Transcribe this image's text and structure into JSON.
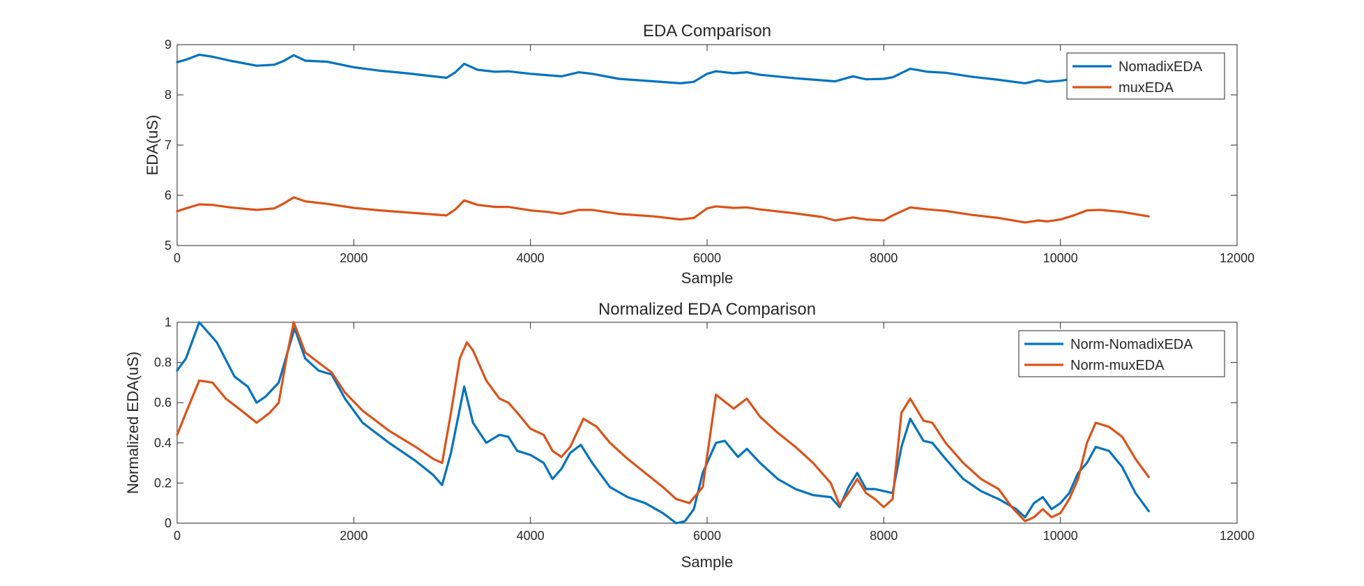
{
  "chart_data": [
    {
      "type": "line",
      "title": "EDA Comparison",
      "xlabel": "Sample",
      "ylabel": "EDA(uS)",
      "xlim": [
        0,
        12000
      ],
      "ylim": [
        5,
        9
      ],
      "xticks": [
        0,
        2000,
        4000,
        6000,
        8000,
        10000,
        12000
      ],
      "xtick_labels": [
        "0",
        "2000",
        "4000",
        "6000",
        "8000",
        "10000",
        "12000"
      ],
      "yticks": [
        5,
        6,
        7,
        8,
        9
      ],
      "ytick_labels": [
        "5",
        "6",
        "7",
        "8",
        "9"
      ],
      "grid": false,
      "legend": "top-right",
      "series": [
        {
          "name": "NomadixEDA",
          "color": "#0072BD",
          "x": [
            0,
            100,
            250,
            400,
            600,
            900,
            1100,
            1200,
            1320,
            1450,
            1700,
            2000,
            2300,
            2600,
            2900,
            3050,
            3150,
            3250,
            3400,
            3600,
            3750,
            4000,
            4200,
            4350,
            4550,
            4700,
            5000,
            5400,
            5700,
            5850,
            6000,
            6100,
            6300,
            6450,
            6600,
            7000,
            7300,
            7450,
            7650,
            7800,
            8000,
            8100,
            8300,
            8500,
            8700,
            9000,
            9300,
            9600,
            9750,
            9850,
            10000,
            10150
          ],
          "y": [
            8.65,
            8.7,
            8.8,
            8.76,
            8.68,
            8.58,
            8.6,
            8.67,
            8.79,
            8.68,
            8.66,
            8.55,
            8.48,
            8.43,
            8.37,
            8.34,
            8.45,
            8.62,
            8.5,
            8.46,
            8.47,
            8.42,
            8.39,
            8.37,
            8.45,
            8.42,
            8.32,
            8.27,
            8.23,
            8.26,
            8.42,
            8.47,
            8.43,
            8.45,
            8.4,
            8.33,
            8.29,
            8.27,
            8.37,
            8.31,
            8.32,
            8.35,
            8.52,
            8.46,
            8.44,
            8.36,
            8.3,
            8.23,
            8.29,
            8.26,
            8.28,
            8.32
          ]
        },
        {
          "name": "muxEDA",
          "color": "#D95319",
          "x": [
            0,
            100,
            250,
            400,
            600,
            900,
            1100,
            1200,
            1320,
            1450,
            1700,
            2000,
            2300,
            2600,
            2900,
            3050,
            3150,
            3250,
            3400,
            3600,
            3750,
            4000,
            4200,
            4350,
            4550,
            4700,
            5000,
            5400,
            5700,
            5850,
            6000,
            6100,
            6300,
            6450,
            6600,
            7000,
            7300,
            7450,
            7650,
            7800,
            8000,
            8100,
            8300,
            8500,
            8700,
            9000,
            9300,
            9600,
            9750,
            9850,
            10000,
            10150,
            10300,
            10450,
            10700,
            11000
          ],
          "y": [
            5.68,
            5.74,
            5.82,
            5.81,
            5.76,
            5.71,
            5.74,
            5.83,
            5.96,
            5.88,
            5.83,
            5.75,
            5.7,
            5.66,
            5.62,
            5.6,
            5.72,
            5.9,
            5.81,
            5.77,
            5.77,
            5.7,
            5.67,
            5.63,
            5.71,
            5.71,
            5.63,
            5.58,
            5.52,
            5.55,
            5.74,
            5.78,
            5.75,
            5.76,
            5.72,
            5.64,
            5.57,
            5.5,
            5.56,
            5.52,
            5.5,
            5.6,
            5.76,
            5.72,
            5.69,
            5.61,
            5.55,
            5.46,
            5.5,
            5.48,
            5.52,
            5.6,
            5.7,
            5.71,
            5.67,
            5.58
          ]
        }
      ]
    },
    {
      "type": "line",
      "title": "Normalized EDA Comparison",
      "xlabel": "Sample",
      "ylabel": "Normalized EDA(uS)",
      "xlim": [
        0,
        12000
      ],
      "ylim": [
        0,
        1
      ],
      "xticks": [
        0,
        2000,
        4000,
        6000,
        8000,
        10000,
        12000
      ],
      "xtick_labels": [
        "0",
        "2000",
        "4000",
        "6000",
        "8000",
        "10000",
        "12000"
      ],
      "yticks": [
        0,
        0.2,
        0.4,
        0.6,
        0.8,
        1
      ],
      "ytick_labels": [
        "0",
        "0.2",
        "0.4",
        "0.6",
        "0.8",
        "1"
      ],
      "grid": false,
      "legend": "top-right",
      "series": [
        {
          "name": "Norm-NomadixEDA",
          "color": "#0072BD",
          "x": [
            0,
            100,
            250,
            450,
            650,
            800,
            900,
            1000,
            1150,
            1250,
            1330,
            1450,
            1600,
            1750,
            1900,
            2100,
            2400,
            2700,
            2900,
            3000,
            3100,
            3250,
            3350,
            3500,
            3650,
            3750,
            3850,
            4000,
            4150,
            4250,
            4350,
            4450,
            4570,
            4700,
            4900,
            5100,
            5300,
            5500,
            5650,
            5750,
            5850,
            5950,
            6100,
            6200,
            6350,
            6450,
            6600,
            6800,
            7000,
            7200,
            7400,
            7500,
            7600,
            7700,
            7800,
            7900,
            8000,
            8100,
            8200,
            8300,
            8450,
            8550,
            8700,
            8900,
            9100,
            9300,
            9500,
            9600,
            9700,
            9800,
            9900,
            10000,
            10100,
            10200,
            10300,
            10400,
            10550,
            10700,
            10850,
            11000
          ],
          "y": [
            0.76,
            0.82,
            1.0,
            0.9,
            0.73,
            0.68,
            0.6,
            0.63,
            0.7,
            0.85,
            0.97,
            0.82,
            0.76,
            0.74,
            0.62,
            0.5,
            0.4,
            0.31,
            0.24,
            0.19,
            0.35,
            0.68,
            0.5,
            0.4,
            0.44,
            0.43,
            0.36,
            0.34,
            0.3,
            0.22,
            0.27,
            0.35,
            0.39,
            0.3,
            0.18,
            0.13,
            0.1,
            0.05,
            0.0,
            0.01,
            0.07,
            0.25,
            0.4,
            0.41,
            0.33,
            0.37,
            0.3,
            0.22,
            0.17,
            0.14,
            0.13,
            0.08,
            0.18,
            0.25,
            0.17,
            0.17,
            0.16,
            0.15,
            0.38,
            0.52,
            0.41,
            0.4,
            0.32,
            0.22,
            0.16,
            0.12,
            0.07,
            0.03,
            0.1,
            0.13,
            0.07,
            0.1,
            0.15,
            0.25,
            0.3,
            0.38,
            0.36,
            0.28,
            0.15,
            0.06
          ]
        },
        {
          "name": "Norm-muxEDA",
          "color": "#D95319",
          "x": [
            0,
            100,
            250,
            400,
            550,
            700,
            900,
            1050,
            1150,
            1250,
            1320,
            1450,
            1600,
            1750,
            1900,
            2100,
            2400,
            2700,
            2900,
            3000,
            3100,
            3200,
            3280,
            3350,
            3500,
            3650,
            3750,
            3850,
            4000,
            4150,
            4250,
            4350,
            4450,
            4600,
            4750,
            4900,
            5100,
            5300,
            5500,
            5650,
            5800,
            5950,
            6100,
            6300,
            6450,
            6600,
            6800,
            7000,
            7200,
            7400,
            7500,
            7600,
            7700,
            7800,
            7900,
            8000,
            8100,
            8200,
            8300,
            8450,
            8550,
            8700,
            8900,
            9100,
            9300,
            9450,
            9600,
            9700,
            9800,
            9900,
            10000,
            10100,
            10200,
            10300,
            10400,
            10550,
            10700,
            10850,
            11000
          ],
          "y": [
            0.44,
            0.55,
            0.71,
            0.7,
            0.62,
            0.57,
            0.5,
            0.55,
            0.6,
            0.85,
            1.0,
            0.85,
            0.8,
            0.75,
            0.65,
            0.56,
            0.46,
            0.38,
            0.32,
            0.3,
            0.55,
            0.82,
            0.9,
            0.86,
            0.71,
            0.62,
            0.6,
            0.55,
            0.47,
            0.44,
            0.36,
            0.33,
            0.38,
            0.52,
            0.48,
            0.4,
            0.32,
            0.25,
            0.18,
            0.12,
            0.1,
            0.18,
            0.64,
            0.57,
            0.62,
            0.53,
            0.45,
            0.38,
            0.3,
            0.2,
            0.09,
            0.15,
            0.22,
            0.15,
            0.12,
            0.08,
            0.12,
            0.55,
            0.62,
            0.51,
            0.5,
            0.4,
            0.3,
            0.22,
            0.17,
            0.08,
            0.01,
            0.03,
            0.07,
            0.03,
            0.05,
            0.12,
            0.22,
            0.4,
            0.5,
            0.48,
            0.43,
            0.32,
            0.23
          ]
        }
      ]
    }
  ]
}
